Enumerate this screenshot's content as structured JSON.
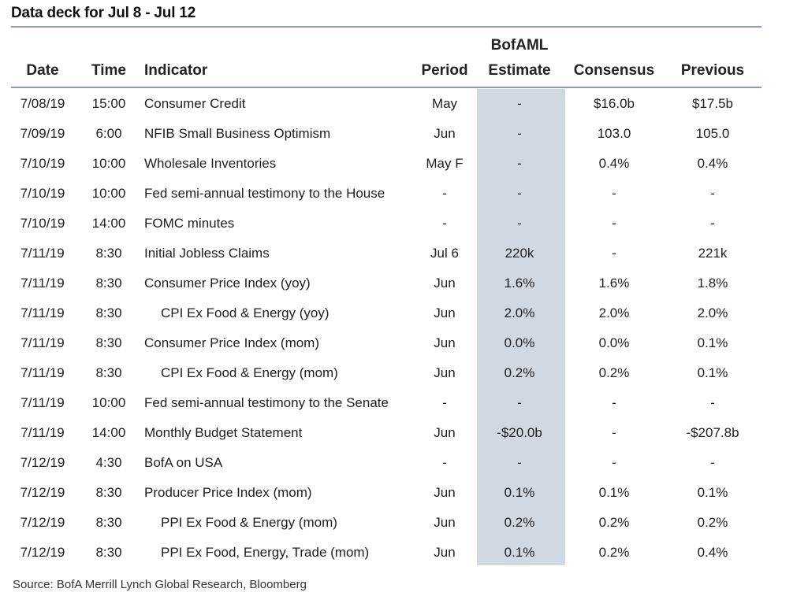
{
  "title": "Data deck for Jul 8 - Jul 12",
  "headers": {
    "date": "Date",
    "time": "Time",
    "indicator": "Indicator",
    "period": "Period",
    "estimate_line1": "BofAML",
    "estimate_line2": "Estimate",
    "consensus": "Consensus",
    "previous": "Previous"
  },
  "rows": [
    {
      "date": "7/08/19",
      "time": "15:00",
      "indicator": "Consumer Credit",
      "indent": false,
      "period": "May",
      "estimate": "-",
      "consensus": "$16.0b",
      "previous": "$17.5b"
    },
    {
      "date": "7/09/19",
      "time": "6:00",
      "indicator": "NFIB Small Business Optimism",
      "indent": false,
      "period": "Jun",
      "estimate": "-",
      "consensus": "103.0",
      "previous": "105.0"
    },
    {
      "date": "7/10/19",
      "time": "10:00",
      "indicator": "Wholesale Inventories",
      "indent": false,
      "period": "May F",
      "estimate": "-",
      "consensus": "0.4%",
      "previous": "0.4%"
    },
    {
      "date": "7/10/19",
      "time": "10:00",
      "indicator": "Fed semi-annual testimony to the House",
      "indent": false,
      "period": "-",
      "estimate": "-",
      "consensus": "-",
      "previous": "-"
    },
    {
      "date": "7/10/19",
      "time": "14:00",
      "indicator": "FOMC minutes",
      "indent": false,
      "period": "-",
      "estimate": "-",
      "consensus": "-",
      "previous": "-"
    },
    {
      "date": "7/11/19",
      "time": "8:30",
      "indicator": "Initial Jobless Claims",
      "indent": false,
      "period": "Jul 6",
      "estimate": "220k",
      "consensus": "-",
      "previous": "221k"
    },
    {
      "date": "7/11/19",
      "time": "8:30",
      "indicator": "Consumer Price Index (yoy)",
      "indent": false,
      "period": "Jun",
      "estimate": "1.6%",
      "consensus": "1.6%",
      "previous": "1.8%"
    },
    {
      "date": "7/11/19",
      "time": "8:30",
      "indicator": "CPI Ex Food & Energy (yoy)",
      "indent": true,
      "period": "Jun",
      "estimate": "2.0%",
      "consensus": "2.0%",
      "previous": "2.0%"
    },
    {
      "date": "7/11/19",
      "time": "8:30",
      "indicator": "Consumer Price Index (mom)",
      "indent": false,
      "period": "Jun",
      "estimate": "0.0%",
      "consensus": "0.0%",
      "previous": "0.1%"
    },
    {
      "date": "7/11/19",
      "time": "8:30",
      "indicator": "CPI Ex Food & Energy (mom)",
      "indent": true,
      "period": "Jun",
      "estimate": "0.2%",
      "consensus": "0.2%",
      "previous": "0.1%"
    },
    {
      "date": "7/11/19",
      "time": "10:00",
      "indicator": "Fed semi-annual testimony to the Senate",
      "indent": false,
      "period": "-",
      "estimate": "-",
      "consensus": "-",
      "previous": "-"
    },
    {
      "date": "7/11/19",
      "time": "14:00",
      "indicator": "Monthly Budget Statement",
      "indent": false,
      "period": "Jun",
      "estimate": "-$20.0b",
      "consensus": "-",
      "previous": "-$207.8b"
    },
    {
      "date": "7/12/19",
      "time": "4:30",
      "indicator": "BofA on USA",
      "indent": false,
      "period": "-",
      "estimate": "-",
      "consensus": "-",
      "previous": "-"
    },
    {
      "date": "7/12/19",
      "time": "8:30",
      "indicator": "Producer Price Index (mom)",
      "indent": false,
      "period": "Jun",
      "estimate": "0.1%",
      "consensus": "0.1%",
      "previous": "0.1%"
    },
    {
      "date": "7/12/19",
      "time": "8:30",
      "indicator": "PPI Ex Food & Energy (mom)",
      "indent": true,
      "period": "Jun",
      "estimate": "0.2%",
      "consensus": "0.2%",
      "previous": "0.2%"
    },
    {
      "date": "7/12/19",
      "time": "8:30",
      "indicator": "PPI Ex Food, Energy, Trade (mom)",
      "indent": true,
      "period": "Jun",
      "estimate": "0.1%",
      "consensus": "0.2%",
      "previous": "0.4%"
    }
  ],
  "source": "Source: BofA Merrill Lynch Global Research, Bloomberg",
  "colors": {
    "estimate_band": "#d0d8e2",
    "rule": "#8a9ab8"
  }
}
